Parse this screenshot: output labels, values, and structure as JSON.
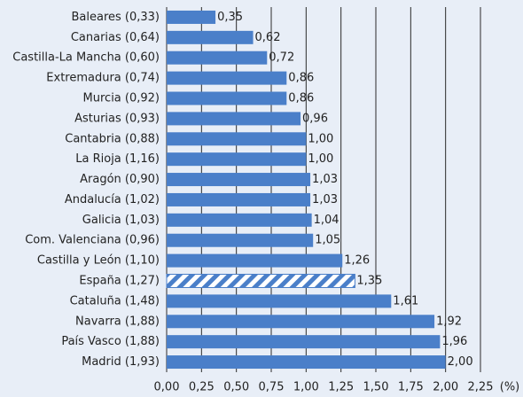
{
  "chart_data": {
    "type": "hbar",
    "categories": [
      "Baleares (0,33)",
      "Canarias (0,64)",
      "Castilla-La Mancha (0,60)",
      "Extremadura (0,74)",
      "Murcia (0,92)",
      "Asturias (0,93)",
      "Cantabria (0,88)",
      "La Rioja (1,16)",
      "Aragón (0,90)",
      "Andalucía (1,02)",
      "Galicia (1,03)",
      "Com. Valenciana (0,96)",
      "Castilla y León (1,10)",
      "España (1,27)",
      "Cataluña (1,48)",
      "Navarra (1,88)",
      "País Vasco (1,88)",
      "Madrid (1,93)"
    ],
    "values": [
      0.35,
      0.62,
      0.72,
      0.86,
      0.86,
      0.96,
      1.0,
      1.0,
      1.03,
      1.03,
      1.04,
      1.05,
      1.26,
      1.35,
      1.61,
      1.92,
      1.96,
      2.0
    ],
    "value_labels": [
      "0,35",
      "0,62",
      "0,72",
      "0,86",
      "0,86",
      "0,96",
      "1,00",
      "1,00",
      "1,03",
      "1,03",
      "1,04",
      "1,05",
      "1,26",
      "1,35",
      "1,61",
      "1,92",
      "1,96",
      "2,00"
    ],
    "color": "#4a7fc9",
    "highlight": 13,
    "x_label": "(%)",
    "xlim": [
      0,
      2.25
    ],
    "xticks": [
      {
        "value": 0,
        "label": "0,00"
      },
      {
        "value": 0.25,
        "label": "0,25"
      },
      {
        "value": 0.5,
        "label": "0,50"
      },
      {
        "value": 0.75,
        "label": "0,75"
      },
      {
        "value": 1,
        "label": "1,00"
      },
      {
        "value": 1.25,
        "label": "1,25"
      },
      {
        "value": 1.5,
        "label": "1,50"
      },
      {
        "value": 1.75,
        "label": "1,75"
      },
      {
        "value": 2,
        "label": "2,00"
      },
      {
        "value": 2.25,
        "label": "2,25"
      }
    ],
    "grid": true
  }
}
